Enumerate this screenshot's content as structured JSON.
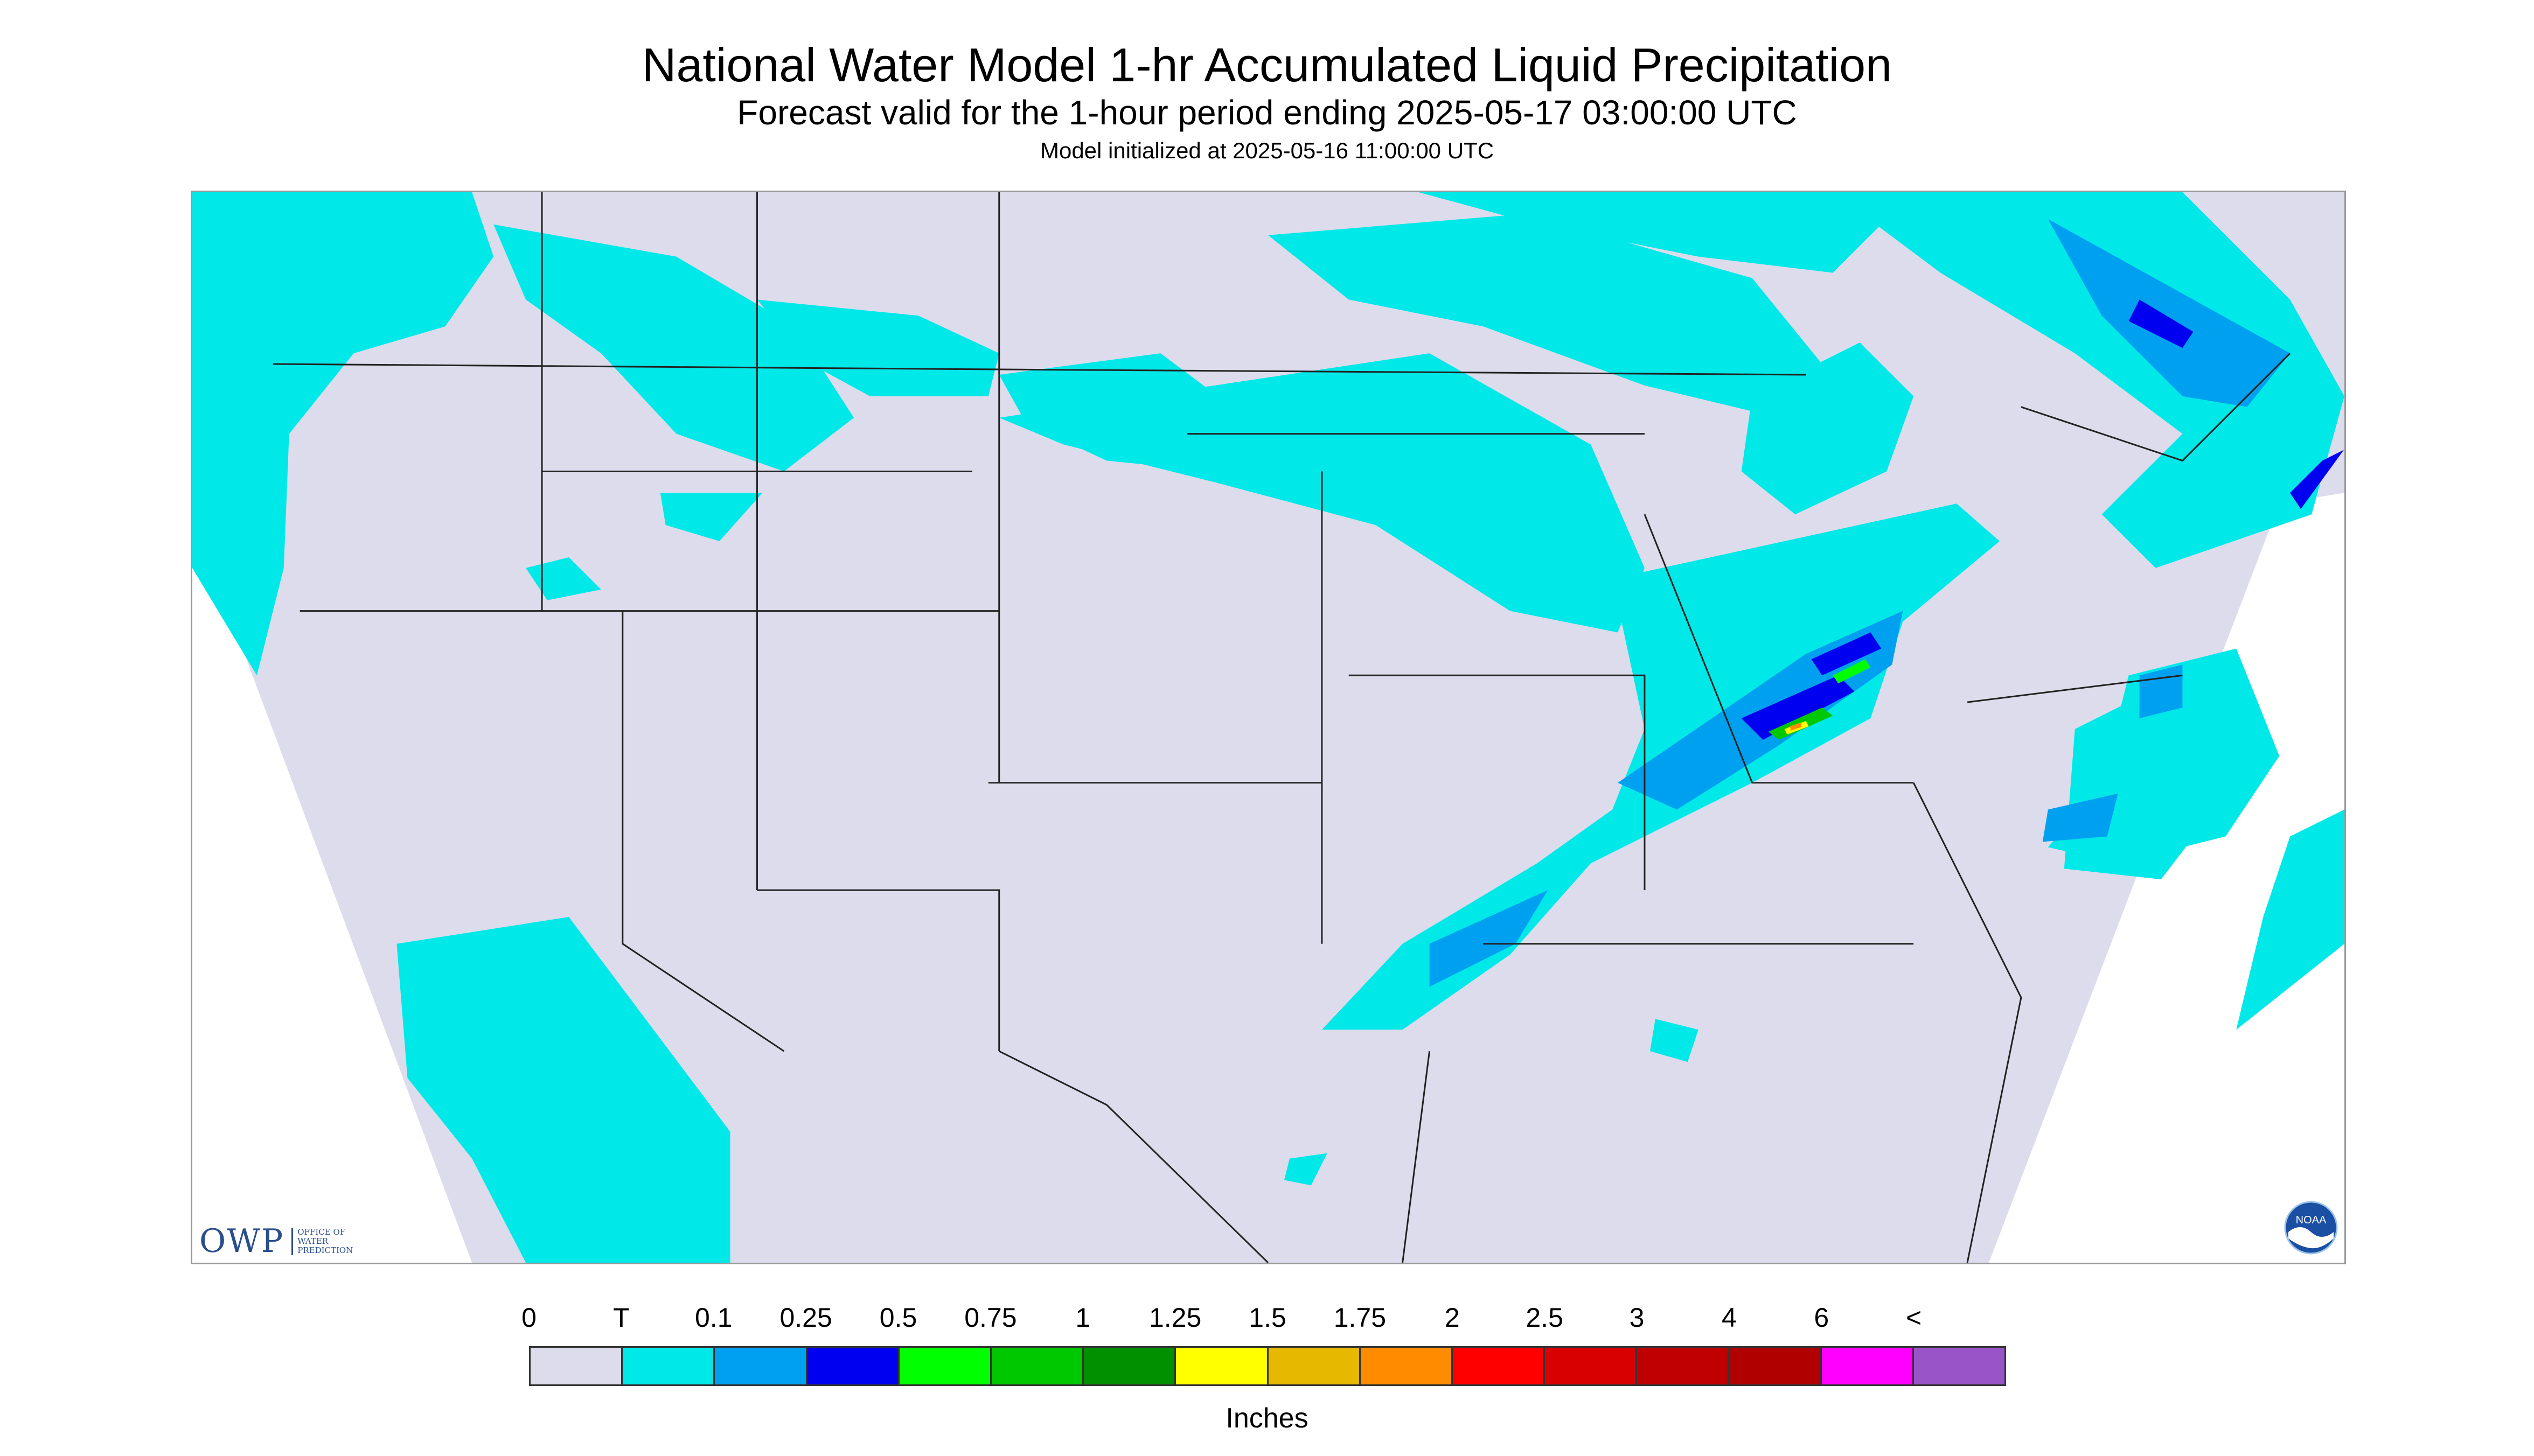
{
  "header": {
    "title": "National Water Model 1-hr Accumulated Liquid Precipitation",
    "subtitle": "Forecast valid for the 1-hour period ending 2025-05-17 03:00:00 UTC",
    "init": "Model initialized at 2025-05-16 11:00:00 UTC"
  },
  "logos": {
    "owp_mark": "OWP",
    "owp_line1": "OFFICE OF",
    "owp_line2": "WATER",
    "owp_line3": "PREDICTION",
    "noaa": "NOAA"
  },
  "legend": {
    "labels": [
      "0",
      "T",
      "0.1",
      "0.25",
      "0.5",
      "0.75",
      "1",
      "1.25",
      "1.5",
      "1.75",
      "2",
      "2.5",
      "3",
      "4",
      "6",
      "<"
    ],
    "colors": [
      "#dcdcec",
      "#00e8e8",
      "#00a0f0",
      "#0000f0",
      "#00ff00",
      "#00c800",
      "#009000",
      "#ffff00",
      "#e6b800",
      "#ff8c00",
      "#ff0000",
      "#d80000",
      "#c00000",
      "#b00000",
      "#ff00ff",
      "#9955c8"
    ],
    "units": "Inches"
  },
  "map": {
    "background": "#dcdcec",
    "no_data": "#ffffff",
    "precip_light": "#00e8e8",
    "precip_mod": "#00a0f0",
    "precip_heavy": "#0000f0"
  }
}
